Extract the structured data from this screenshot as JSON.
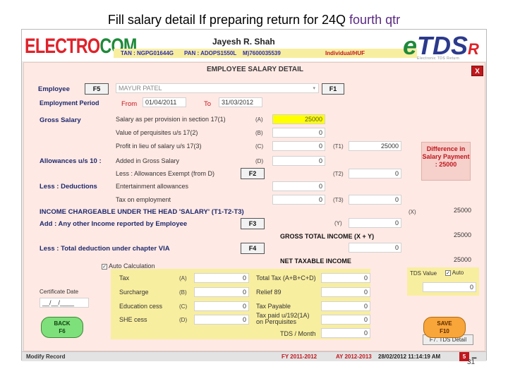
{
  "slide": {
    "title_prefix": "Fill salary detail If preparing return for 24Q ",
    "title_highlight": "fourth qtr",
    "page_number": "31"
  },
  "header": {
    "logo_left_a": "ELECTRO",
    "logo_left_b": "COM",
    "user_name": "Jayesh R. Shah",
    "tan": "TAN : NGPG01644G",
    "pan": "PAN : ADOPS1550L",
    "mobile": "M)7600035539",
    "status": "Individual/HUF",
    "logo_right_e": "e",
    "logo_right_tds": "TDS",
    "logo_right_r": "R",
    "logo_sub": "Electronic TDS Return"
  },
  "panel": {
    "title": "EMPLOYEE SALARY DETAIL",
    "close_label": "X",
    "employee_label": "Employee",
    "employee_fkey": "F5",
    "employee_name": "MAYUR PATEL",
    "employee_f1": "F1",
    "period_label": "Employment Period",
    "from_label": "From",
    "from_date": "01/04/2011",
    "to_label": "To",
    "to_date": "31/03/2012",
    "gross_salary_label": "Gross Salary",
    "allowances_label": "Allowances u/s 10 :",
    "less_deductions_label": "Less : Deductions",
    "rows": [
      {
        "label": "Salary as per provision in section 17(1)",
        "mark": "(A)",
        "value": "25000"
      },
      {
        "label": "Value of perquisites u/s 17(2)",
        "mark": "(B)",
        "value": "0"
      },
      {
        "label": "Profit in lieu of salary u/s 17(3)",
        "mark": "(C)",
        "value": "0"
      },
      {
        "label": "Added in Gross Salary",
        "mark": "(D)",
        "value": "0"
      },
      {
        "label": "Less : Allowances Exempt (from D)",
        "mark": "",
        "value": ""
      },
      {
        "label": "Entertainment allowances",
        "mark": "",
        "value": "0"
      },
      {
        "label": "Tax on employment",
        "mark": "",
        "value": "0"
      }
    ],
    "f2_label": "F2",
    "t1_mark": "(T1)",
    "t1_value": "25000",
    "t2_mark": "(T2)",
    "t2_value": "0",
    "t3_mark": "(T3)",
    "t3_value": "0",
    "diff_box": "Difference in Salary Payment : 25000",
    "income_head_label": "INCOME CHARGEABLE UNDER THE HEAD 'SALARY'  (T1-T2-T3)",
    "x_mark": "(X)",
    "x_value": "25000",
    "other_income_label": "Add : Any other Income reported by Employee",
    "f3_label": "F3",
    "y_mark": "(Y)",
    "y_value": "0",
    "gross_total_label": "GROSS TOTAL INCOME (X + Y)",
    "gross_total_value": "25000",
    "via_label": "Less : Total deduction under chapter VIA",
    "f4_label": "F4",
    "via_value": "0",
    "net_taxable_label": "NET TAXABLE INCOME",
    "net_taxable_value": "25000",
    "auto_calc_label": "Auto Calculation",
    "tax_rows": [
      {
        "label": "Tax",
        "mark": "(A)",
        "value": "0"
      },
      {
        "label": "Surcharge",
        "mark": "(B)",
        "value": "0"
      },
      {
        "label": "Education cess",
        "mark": "(C)",
        "value": "0"
      },
      {
        "label": "SHE cess",
        "mark": "(D)",
        "value": "0"
      }
    ],
    "tax_right_rows": [
      {
        "label": "Total Tax (A+B+C+D)",
        "value": "0"
      },
      {
        "label": "Relief 89",
        "value": "0"
      },
      {
        "label": "Tax Payable",
        "value": "0"
      },
      {
        "label": "Tax paid u/192(1A) on Perquisites",
        "value": "0"
      }
    ],
    "tds_month_label": "TDS / Month",
    "tds_month_value": "0",
    "tds_value_label": "TDS Value",
    "auto_label": "Auto",
    "tds_value": "0",
    "tds_detail_btn": "F7. TDS Detail",
    "cert_date_label": "Certificate Date",
    "cert_date_value": "__/__/____",
    "back_btn_line1": "BACK",
    "back_btn_line2": "F6",
    "save_btn_line1": "SAVE",
    "save_btn_line2": "F10"
  },
  "status_bar": {
    "mode": "Modify Record",
    "fy": "FY 2011-2012",
    "ay": "AY 2012-2013",
    "datetime": "28/02/2012 11:14:19 AM",
    "counter": "5"
  },
  "colors": {
    "accent_red": "#c0171d",
    "panel_bg": "#ffe9e4",
    "highlight_yellow": "#f8ee9f",
    "header_blue": "#1e2a6e"
  }
}
